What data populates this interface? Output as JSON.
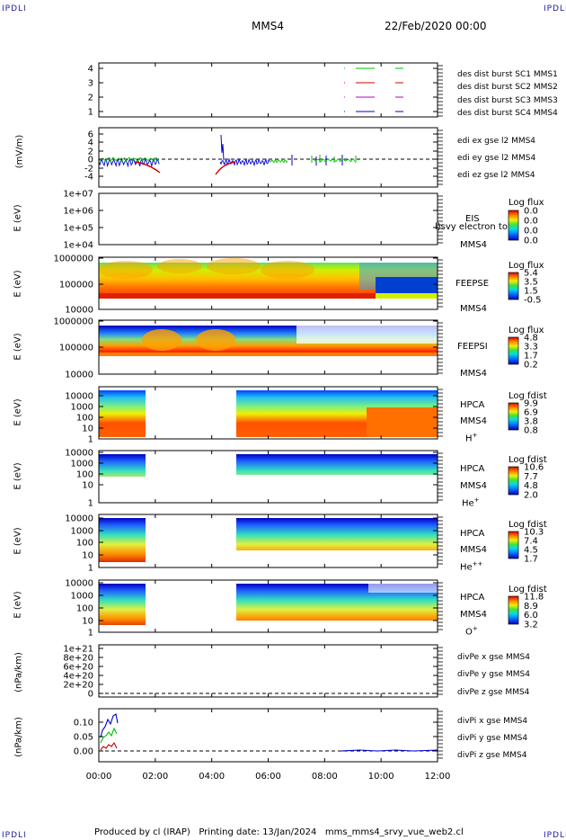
{
  "header": {
    "corner_tl": "IPDLI",
    "corner_tr": "IPDLI",
    "corner_bl": "IPDLI",
    "corner_br": "IPDLI",
    "spacecraft": "MMS4",
    "datetime": "22/Feb/2020 00:00"
  },
  "footer": {
    "text": "Produced by cl (IRAP)   Printing date: 13/Jan/2024   mms_mms4_srvy_vue_web2.cl"
  },
  "colors": {
    "blue": "#0000d0",
    "red": "#d00000",
    "green": "#00c000",
    "magenta": "#c000c0"
  },
  "chart_data": [
    {
      "type": "line",
      "panel": "des-dist",
      "y_ticks": [
        "4",
        "3",
        "2",
        "1"
      ],
      "ylim": [
        0.5,
        4.5
      ],
      "legend": [
        {
          "label": "des dist burst SC1 MMS1",
          "color": "#0000d0"
        },
        {
          "label": "des dist burst SC2 MMS2",
          "color": "#c000c0"
        },
        {
          "label": "des dist burst SC3 MMS3",
          "color": "#d00000"
        },
        {
          "label": "des dist burst SC4 MMS4",
          "color": "#00c000"
        }
      ]
    },
    {
      "type": "line",
      "panel": "edi",
      "ylabel": "(mV/m)",
      "y_ticks": [
        "6",
        "4",
        "2",
        "0",
        "-2",
        "-4"
      ],
      "ylim": [
        -5,
        7
      ],
      "legend": [
        {
          "label": "edi ex gse l2 MMS4",
          "color": "#d00000"
        },
        {
          "label": "edi ey gse l2 MMS4",
          "color": "#00c000"
        },
        {
          "label": "edi ez gse l2 MMS4",
          "color": "#0000d0"
        }
      ]
    },
    {
      "type": "heatmap",
      "panel": "eis",
      "ylabel": "E (eV)",
      "y_ticks": [
        "1e+07",
        "1e+06",
        "1e+05",
        "1e+04"
      ],
      "instrument": "EIS",
      "overlay": "l)svy electron to",
      "sc": "MMS4",
      "cbar_title": "Log flux",
      "cbar_ticks": [
        "0.0",
        "0.0",
        "0.0",
        "0.0"
      ]
    },
    {
      "type": "heatmap",
      "panel": "feepse",
      "ylabel": "E (eV)",
      "y_ticks": [
        "1000000",
        "100000",
        "10000"
      ],
      "instrument": "FEEPSE",
      "sc": "MMS4",
      "cbar_title": "Log flux",
      "cbar_ticks": [
        "5.4",
        "3.5",
        "1.5",
        "-0.5"
      ]
    },
    {
      "type": "heatmap",
      "panel": "feepsi",
      "ylabel": "E (eV)",
      "y_ticks": [
        "1000000",
        "100000",
        "10000"
      ],
      "instrument": "FEEPSI",
      "sc": "MMS4",
      "cbar_title": "Log flux",
      "cbar_ticks": [
        "4.8",
        "3.3",
        "1.7",
        "0.2"
      ]
    },
    {
      "type": "heatmap",
      "panel": "hpca-h",
      "ylabel": "E (eV)",
      "y_ticks": [
        "10000",
        "1000",
        "100",
        "10",
        "1"
      ],
      "instrument": "HPCA",
      "sc": "MMS4",
      "species": "H",
      "charge": "+",
      "cbar_title": "Log fdist",
      "cbar_ticks": [
        "9.9",
        "6.9",
        "3.8",
        "0.8"
      ]
    },
    {
      "type": "heatmap",
      "panel": "hpca-he1",
      "ylabel": "E (eV)",
      "y_ticks": [
        "10000",
        "1000",
        "100",
        "10",
        "1"
      ],
      "instrument": "HPCA",
      "sc": "MMS4",
      "species": "He",
      "charge": "+",
      "cbar_title": "Log fdist",
      "cbar_ticks": [
        "10.6",
        "7.7",
        "4.8",
        "2.0"
      ]
    },
    {
      "type": "heatmap",
      "panel": "hpca-he2",
      "ylabel": "E (eV)",
      "y_ticks": [
        "10000",
        "1000",
        "100",
        "10",
        "1"
      ],
      "instrument": "HPCA",
      "sc": "MMS4",
      "species": "He",
      "charge": "++",
      "cbar_title": "Log fdist",
      "cbar_ticks": [
        "10.3",
        "7.4",
        "4.5",
        "1.7"
      ]
    },
    {
      "type": "heatmap",
      "panel": "hpca-o",
      "ylabel": "E (eV)",
      "y_ticks": [
        "10000",
        "1000",
        "100",
        "10",
        "1"
      ],
      "instrument": "HPCA",
      "sc": "MMS4",
      "species": "O",
      "charge": "+",
      "cbar_title": "Log fdist",
      "cbar_ticks": [
        "11.8",
        "8.9",
        "6.0",
        "3.2"
      ]
    },
    {
      "type": "line",
      "panel": "divpe",
      "ylabel": "(nPa/km)",
      "y_ticks": [
        "1e+21",
        "8e+20",
        "6e+20",
        "4e+20",
        "2e+20",
        "0"
      ],
      "ylim": [
        -1e+20,
        1.05e+21
      ],
      "legend": [
        {
          "label": "divPe x gse MMS4",
          "color": "#d00000"
        },
        {
          "label": "divPe y gse MMS4",
          "color": "#00c000"
        },
        {
          "label": "divPe z gse MMS4",
          "color": "#0000d0"
        }
      ]
    },
    {
      "type": "line",
      "panel": "divpi",
      "ylabel": "(nPa/km)",
      "y_ticks": [
        "0.10",
        "0.05",
        "0.00"
      ],
      "ylim": [
        -0.02,
        0.13
      ],
      "legend": [
        {
          "label": "divPi x gse MMS4",
          "color": "#d00000"
        },
        {
          "label": "divPi y gse MMS4",
          "color": "#00c000"
        },
        {
          "label": "divPi z gse MMS4",
          "color": "#0000d0"
        }
      ]
    }
  ],
  "x_axis": {
    "ticks": [
      "00:00",
      "02:00",
      "04:00",
      "06:00",
      "08:00",
      "10:00",
      "12:00"
    ],
    "xlim_hours": [
      0,
      12
    ]
  }
}
